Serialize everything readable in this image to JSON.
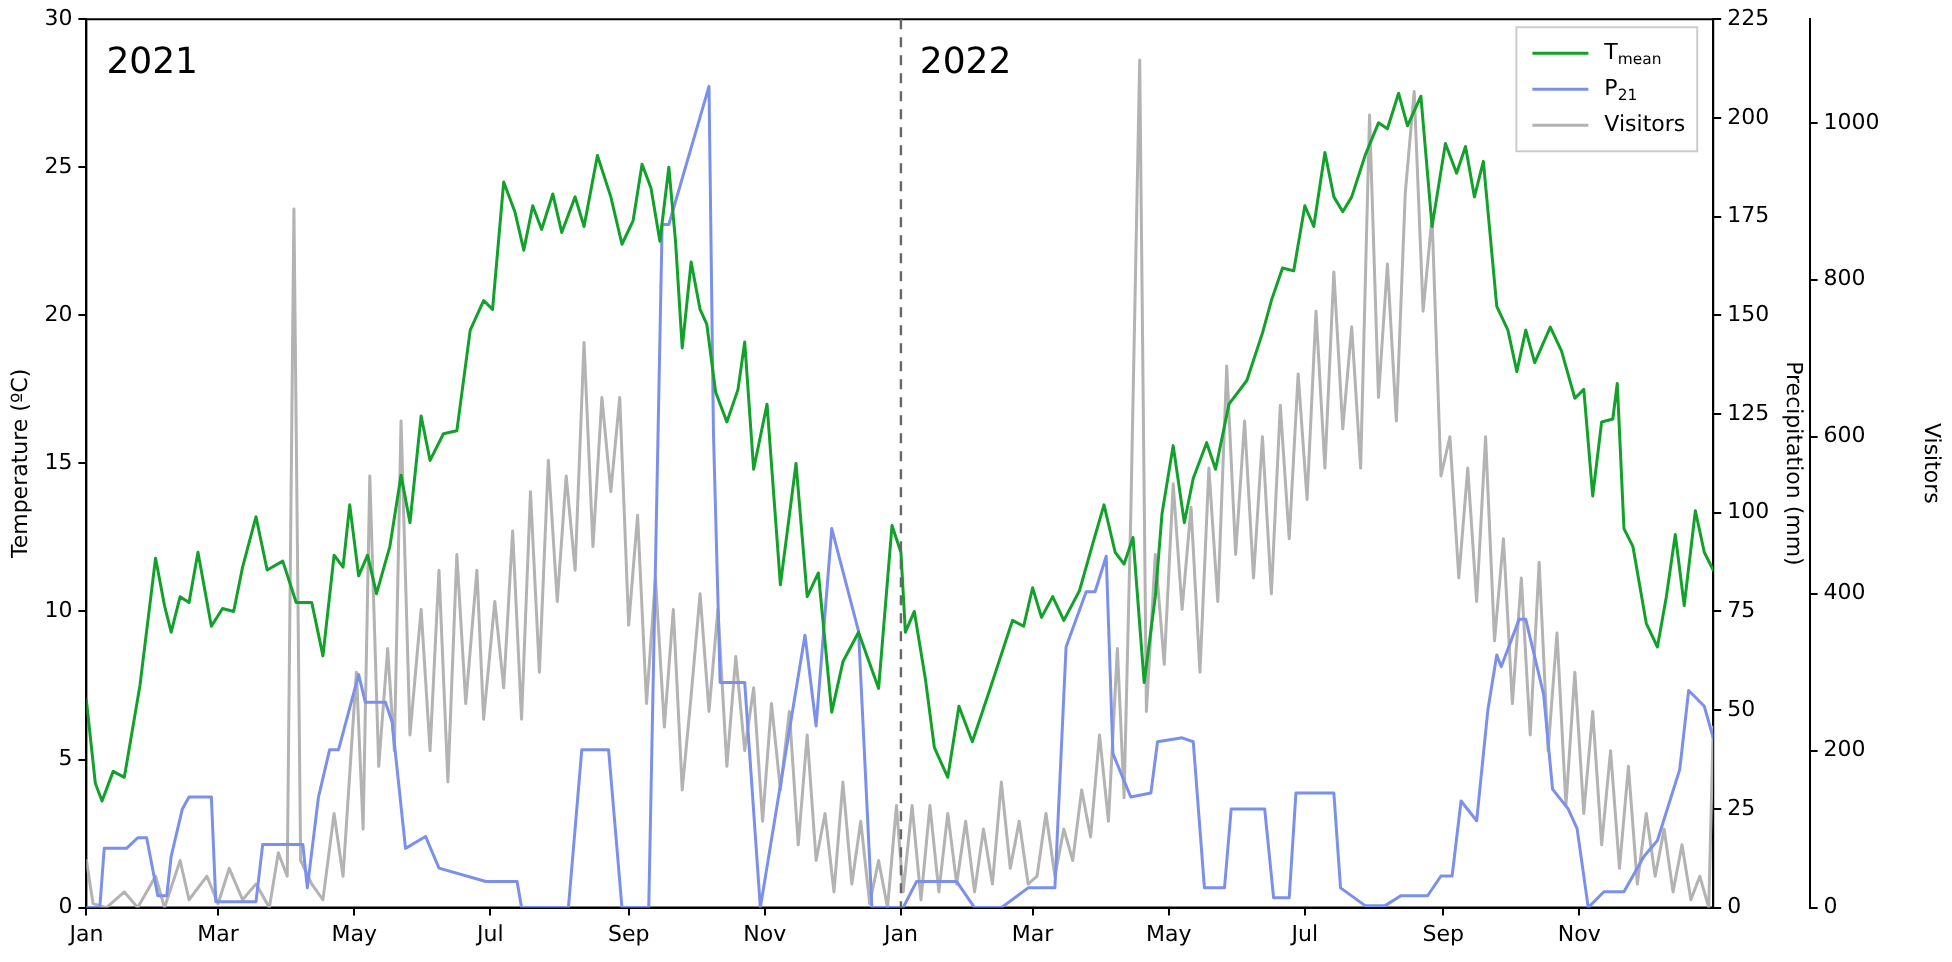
{
  "chart_data": {
    "type": "line",
    "ylabel": "Temperature (ºC)",
    "y2label": "Precipitation (mm)",
    "y3label": "Visitors",
    "xlim": [
      "2021-01-01",
      "2022-12-31"
    ],
    "xticks": [
      {
        "value": "2021-01-01",
        "label": "Jan"
      },
      {
        "value": "2021-03-01",
        "label": "Mar"
      },
      {
        "value": "2021-05-01",
        "label": "May"
      },
      {
        "value": "2021-07-01",
        "label": "Jul"
      },
      {
        "value": "2021-09-01",
        "label": "Sep"
      },
      {
        "value": "2021-11-01",
        "label": "Nov"
      },
      {
        "value": "2022-01-01",
        "label": "Jan"
      },
      {
        "value": "2022-03-01",
        "label": "Mar"
      },
      {
        "value": "2022-05-01",
        "label": "May"
      },
      {
        "value": "2022-07-01",
        "label": "Jul"
      },
      {
        "value": "2022-09-01",
        "label": "Sep"
      },
      {
        "value": "2022-11-01",
        "label": "Nov"
      }
    ],
    "ylim": [
      0,
      30
    ],
    "yticks": [
      0,
      5,
      10,
      15,
      20,
      25,
      30
    ],
    "y2lim": [
      0,
      225
    ],
    "y2ticks": [
      0,
      25,
      50,
      75,
      100,
      125,
      150,
      175,
      200,
      225
    ],
    "y3lim": [
      0,
      1132
    ],
    "y3ticks": [
      0,
      200,
      400,
      600,
      800,
      1000
    ],
    "grid": false,
    "legend": "top right",
    "marker": "none",
    "annotations": [
      "2021",
      "2022"
    ],
    "ref_lines": [
      {
        "axis": "x",
        "value": "2022-01-01",
        "color": "#666666",
        "line_style": "dashed"
      }
    ],
    "series": [
      {
        "name": "T$_{mean}$",
        "color": "#12a12a",
        "axis": "y",
        "x": [
          "2021-01-01",
          "2021-01-05",
          "2021-01-08",
          "2021-01-13",
          "2021-01-18",
          "2021-01-25",
          "2021-02-01",
          "2021-02-05",
          "2021-02-08",
          "2021-02-12",
          "2021-02-16",
          "2021-02-20",
          "2021-02-26",
          "2021-03-03",
          "2021-03-08",
          "2021-03-12",
          "2021-03-18",
          "2021-03-23",
          "2021-03-30",
          "2021-04-05",
          "2021-04-12",
          "2021-04-17",
          "2021-04-22",
          "2021-04-26",
          "2021-04-29",
          "2021-05-03",
          "2021-05-07",
          "2021-05-11",
          "2021-05-17",
          "2021-05-22",
          "2021-05-26",
          "2021-05-31",
          "2021-06-04",
          "2021-06-10",
          "2021-06-16",
          "2021-06-22",
          "2021-06-28",
          "2021-07-02",
          "2021-07-07",
          "2021-07-12",
          "2021-07-16",
          "2021-07-20",
          "2021-07-24",
          "2021-07-29",
          "2021-08-02",
          "2021-08-08",
          "2021-08-12",
          "2021-08-18",
          "2021-08-24",
          "2021-08-29",
          "2021-09-03",
          "2021-09-07",
          "2021-09-11",
          "2021-09-15",
          "2021-09-19",
          "2021-09-22",
          "2021-09-25",
          "2021-09-29",
          "2021-10-03",
          "2021-10-06",
          "2021-10-10",
          "2021-10-15",
          "2021-10-20",
          "2021-10-23",
          "2021-10-27",
          "2021-11-02",
          "2021-11-08",
          "2021-11-15",
          "2021-11-20",
          "2021-11-25",
          "2021-12-01",
          "2021-12-06",
          "2021-12-13",
          "2021-12-22",
          "2021-12-28",
          "2022-01-01",
          "2022-01-03",
          "2022-01-07",
          "2022-01-12",
          "2022-01-16",
          "2022-01-22",
          "2022-01-27",
          "2022-02-02",
          "2022-02-10",
          "2022-02-20",
          "2022-02-25",
          "2022-03-01",
          "2022-03-05",
          "2022-03-10",
          "2022-03-15",
          "2022-03-22",
          "2022-03-28",
          "2022-04-02",
          "2022-04-07",
          "2022-04-11",
          "2022-04-15",
          "2022-04-20",
          "2022-04-25",
          "2022-04-28",
          "2022-05-03",
          "2022-05-08",
          "2022-05-12",
          "2022-05-18",
          "2022-05-22",
          "2022-05-28",
          "2022-06-05",
          "2022-06-12",
          "2022-06-16",
          "2022-06-21",
          "2022-06-26",
          "2022-07-01",
          "2022-07-05",
          "2022-07-10",
          "2022-07-14",
          "2022-07-18",
          "2022-07-22",
          "2022-07-28",
          "2022-08-03",
          "2022-08-07",
          "2022-08-12",
          "2022-08-16",
          "2022-08-22",
          "2022-08-27",
          "2022-09-02",
          "2022-09-07",
          "2022-09-11",
          "2022-09-15",
          "2022-09-19",
          "2022-09-25",
          "2022-09-30",
          "2022-10-04",
          "2022-10-08",
          "2022-10-12",
          "2022-10-19",
          "2022-10-24",
          "2022-10-30",
          "2022-11-03",
          "2022-11-07",
          "2022-11-11",
          "2022-11-16",
          "2022-11-18",
          "2022-11-21",
          "2022-11-25",
          "2022-12-01",
          "2022-12-06",
          "2022-12-10",
          "2022-12-14",
          "2022-12-18",
          "2022-12-23",
          "2022-12-27",
          "2022-12-31"
        ],
        "values": [
          7,
          4.2,
          3.6,
          4.6,
          4.4,
          7.5,
          11.8,
          10.2,
          9.3,
          10.5,
          10.3,
          12,
          9.5,
          10.1,
          10,
          11.5,
          13.2,
          11.4,
          11.7,
          10.3,
          10.3,
          8.5,
          11.9,
          11.5,
          13.6,
          11.2,
          11.9,
          10.6,
          12.2,
          14.6,
          13,
          16.6,
          15.1,
          16,
          16.1,
          19.5,
          20.5,
          20.2,
          24.5,
          23.5,
          22.2,
          23.7,
          22.9,
          24.1,
          22.8,
          24,
          23,
          25.4,
          24,
          22.4,
          23.2,
          25.1,
          24.3,
          22.5,
          25,
          22.5,
          18.9,
          21.8,
          20.2,
          19.7,
          17.4,
          16.4,
          17.5,
          19.1,
          14.8,
          17,
          10.9,
          15,
          10.5,
          11.3,
          6.6,
          8.3,
          9.3,
          7.4,
          12.9,
          12,
          9.3,
          10,
          7.7,
          5.4,
          4.4,
          6.8,
          5.6,
          7.4,
          9.7,
          9.5,
          10.8,
          9.8,
          10.5,
          9.7,
          10.7,
          12.3,
          13.6,
          12,
          11.6,
          12.5,
          7.6,
          10.5,
          13.3,
          15.6,
          13,
          14.5,
          15.7,
          14.8,
          17,
          17.8,
          19.4,
          20.5,
          21.6,
          21.5,
          23.7,
          23,
          25.5,
          24,
          23.5,
          24,
          25.4,
          26.5,
          26.3,
          27.5,
          26.4,
          27.4,
          23,
          25.8,
          24.8,
          25.7,
          24,
          25.2,
          20.3,
          19.5,
          18.1,
          19.5,
          18.4,
          19.6,
          18.8,
          17.2,
          17.5,
          13.9,
          16.4,
          16.5,
          17.7,
          12.8,
          12.2,
          9.6,
          8.8,
          10.5,
          12.6,
          10.2,
          13.4,
          12,
          11.4
        ]
      },
      {
        "name": "P$_{21}$",
        "color": "#7b90ea",
        "axis": "y2",
        "x": [
          "2021-01-01",
          "2021-01-07",
          "2021-01-09",
          "2021-01-19",
          "2021-01-24",
          "2021-01-28",
          "2021-02-02",
          "2021-02-06",
          "2021-02-08",
          "2021-02-13",
          "2021-02-16",
          "2021-02-26",
          "2021-02-28",
          "2021-03-18",
          "2021-03-21",
          "2021-04-08",
          "2021-04-10",
          "2021-04-15",
          "2021-04-20",
          "2021-04-24",
          "2021-05-03",
          "2021-05-06",
          "2021-05-15",
          "2021-05-18",
          "2021-05-24",
          "2021-06-02",
          "2021-06-08",
          "2021-06-29",
          "2021-07-13",
          "2021-07-15",
          "2021-08-05",
          "2021-08-11",
          "2021-08-23",
          "2021-08-29",
          "2021-09-10",
          "2021-09-16",
          "2021-09-19",
          "2021-10-07",
          "2021-10-09",
          "2021-10-12",
          "2021-10-23",
          "2021-10-30",
          "2021-11-19",
          "2021-11-24",
          "2021-12-01",
          "2021-12-13",
          "2021-12-19",
          "2022-01-02",
          "2022-01-08",
          "2022-01-26",
          "2022-02-03",
          "2022-02-15",
          "2022-02-27",
          "2022-03-11",
          "2022-03-16",
          "2022-03-25",
          "2022-03-29",
          "2022-04-03",
          "2022-04-06",
          "2022-04-14",
          "2022-04-23",
          "2022-04-26",
          "2022-05-07",
          "2022-05-12",
          "2022-05-17",
          "2022-05-26",
          "2022-05-29",
          "2022-06-13",
          "2022-06-17",
          "2022-06-24",
          "2022-06-27",
          "2022-07-07",
          "2022-07-14",
          "2022-07-17",
          "2022-07-28",
          "2022-08-06",
          "2022-08-13",
          "2022-08-25",
          "2022-08-31",
          "2022-09-05",
          "2022-09-09",
          "2022-09-16",
          "2022-09-21",
          "2022-09-25",
          "2022-09-27",
          "2022-10-05",
          "2022-10-08",
          "2022-10-16",
          "2022-10-20",
          "2022-10-27",
          "2022-10-31",
          "2022-11-05",
          "2022-11-12",
          "2022-11-21",
          "2022-11-30",
          "2022-12-06",
          "2022-12-16",
          "2022-12-20",
          "2022-12-27",
          "2022-12-31"
        ],
        "values": [
          0,
          0,
          15,
          15,
          17.7,
          17.7,
          3,
          3,
          13,
          25,
          28,
          28,
          1.5,
          1.5,
          16,
          16,
          5,
          28,
          40,
          40,
          59,
          52,
          52,
          47,
          15,
          18,
          10,
          6.6,
          6.6,
          0,
          0,
          40,
          40,
          0,
          0,
          173,
          173,
          208,
          120,
          57,
          57,
          0,
          69,
          46,
          96,
          70,
          0,
          0,
          6.6,
          6.6,
          0,
          0,
          5,
          5,
          66,
          80,
          80,
          89,
          39,
          28,
          29,
          42,
          43,
          42,
          5,
          5,
          25,
          25,
          2.5,
          2.5,
          29,
          29,
          29,
          5,
          0.5,
          0.5,
          3,
          3,
          8,
          8,
          27,
          22,
          50,
          64,
          61,
          73,
          73,
          54,
          30,
          25,
          20,
          0,
          4,
          4,
          13,
          17,
          35,
          55,
          51,
          43
        ]
      },
      {
        "name": "Visitors",
        "color": "#b3b3b3",
        "axis": "y3",
        "x": [
          "2021-01-01",
          "2021-01-04",
          "2021-01-10",
          "2021-01-18",
          "2021-01-24",
          "2021-02-01",
          "2021-02-05",
          "2021-02-12",
          "2021-02-16",
          "2021-02-24",
          "2021-03-01",
          "2021-03-06",
          "2021-03-12",
          "2021-03-18",
          "2021-03-24",
          "2021-03-28",
          "2021-04-01",
          "2021-04-04",
          "2021-04-07",
          "2021-04-12",
          "2021-04-17",
          "2021-04-22",
          "2021-04-26",
          "2021-05-02",
          "2021-05-05",
          "2021-05-08",
          "2021-05-12",
          "2021-05-16",
          "2021-05-19",
          "2021-05-22",
          "2021-05-26",
          "2021-05-31",
          "2021-06-04",
          "2021-06-08",
          "2021-06-12",
          "2021-06-16",
          "2021-06-20",
          "2021-06-25",
          "2021-06-28",
          "2021-07-03",
          "2021-07-07",
          "2021-07-11",
          "2021-07-15",
          "2021-07-19",
          "2021-07-23",
          "2021-07-27",
          "2021-07-31",
          "2021-08-04",
          "2021-08-08",
          "2021-08-12",
          "2021-08-16",
          "2021-08-20",
          "2021-08-24",
          "2021-08-28",
          "2021-09-01",
          "2021-09-05",
          "2021-09-09",
          "2021-09-13",
          "2021-09-17",
          "2021-09-21",
          "2021-09-25",
          "2021-09-29",
          "2021-10-03",
          "2021-10-07",
          "2021-10-11",
          "2021-10-15",
          "2021-10-19",
          "2021-10-23",
          "2021-10-27",
          "2021-10-31",
          "2021-11-04",
          "2021-11-08",
          "2021-11-12",
          "2021-11-16",
          "2021-11-20",
          "2021-11-24",
          "2021-11-28",
          "2021-12-02",
          "2021-12-06",
          "2021-12-10",
          "2021-12-14",
          "2021-12-18",
          "2021-12-22",
          "2021-12-26",
          "2021-12-30",
          "2022-01-02",
          "2022-01-06",
          "2022-01-10",
          "2022-01-14",
          "2022-01-18",
          "2022-01-22",
          "2022-01-26",
          "2022-01-30",
          "2022-02-03",
          "2022-02-07",
          "2022-02-11",
          "2022-02-15",
          "2022-02-19",
          "2022-02-23",
          "2022-02-27",
          "2022-03-03",
          "2022-03-07",
          "2022-03-11",
          "2022-03-15",
          "2022-03-19",
          "2022-03-23",
          "2022-03-27",
          "2022-03-31",
          "2022-04-04",
          "2022-04-08",
          "2022-04-11",
          "2022-04-14",
          "2022-04-18",
          "2022-04-21",
          "2022-04-25",
          "2022-04-29",
          "2022-05-03",
          "2022-05-07",
          "2022-05-11",
          "2022-05-15",
          "2022-05-19",
          "2022-05-23",
          "2022-05-27",
          "2022-05-31",
          "2022-06-04",
          "2022-06-08",
          "2022-06-12",
          "2022-06-16",
          "2022-06-20",
          "2022-06-24",
          "2022-06-28",
          "2022-07-02",
          "2022-07-06",
          "2022-07-10",
          "2022-07-14",
          "2022-07-18",
          "2022-07-22",
          "2022-07-26",
          "2022-07-30",
          "2022-08-03",
          "2022-08-07",
          "2022-08-11",
          "2022-08-15",
          "2022-08-19",
          "2022-08-23",
          "2022-08-27",
          "2022-08-31",
          "2022-09-04",
          "2022-09-08",
          "2022-09-12",
          "2022-09-16",
          "2022-09-20",
          "2022-09-24",
          "2022-09-28",
          "2022-10-02",
          "2022-10-06",
          "2022-10-10",
          "2022-10-14",
          "2022-10-18",
          "2022-10-22",
          "2022-10-26",
          "2022-10-30",
          "2022-11-03",
          "2022-11-07",
          "2022-11-11",
          "2022-11-15",
          "2022-11-19",
          "2022-11-23",
          "2022-11-27",
          "2022-12-01",
          "2022-12-05",
          "2022-12-09",
          "2022-12-13",
          "2022-12-17",
          "2022-12-21",
          "2022-12-25",
          "2022-12-29",
          "2022-12-31"
        ],
        "values": [
          60,
          5,
          0,
          20,
          0,
          40,
          0,
          60,
          10,
          40,
          5,
          50,
          10,
          30,
          0,
          70,
          40,
          890,
          60,
          30,
          10,
          120,
          40,
          300,
          100,
          550,
          180,
          330,
          200,
          620,
          220,
          380,
          200,
          430,
          160,
          450,
          260,
          430,
          240,
          390,
          280,
          480,
          240,
          530,
          300,
          570,
          390,
          550,
          430,
          720,
          460,
          650,
          530,
          650,
          360,
          500,
          260,
          420,
          230,
          380,
          150,
          270,
          400,
          250,
          380,
          180,
          320,
          200,
          280,
          110,
          260,
          150,
          250,
          80,
          220,
          60,
          120,
          20,
          160,
          30,
          110,
          5,
          60,
          0,
          130,
          20,
          130,
          10,
          130,
          20,
          120,
          30,
          110,
          20,
          100,
          30,
          160,
          50,
          110,
          30,
          40,
          120,
          40,
          100,
          60,
          150,
          90,
          220,
          110,
          330,
          140,
          500,
          1080,
          250,
          450,
          310,
          540,
          380,
          510,
          300,
          560,
          390,
          690,
          450,
          620,
          420,
          600,
          400,
          640,
          470,
          680,
          520,
          760,
          560,
          810,
          610,
          740,
          560,
          1010,
          650,
          820,
          620,
          910,
          1040,
          760,
          880,
          550,
          600,
          420,
          560,
          390,
          600,
          340,
          470,
          260,
          420,
          220,
          440,
          200,
          350,
          130,
          300,
          120,
          250,
          80,
          200,
          50,
          180,
          30,
          120,
          40,
          100,
          20,
          80,
          10,
          40,
          0,
          230
        ]
      }
    ]
  }
}
